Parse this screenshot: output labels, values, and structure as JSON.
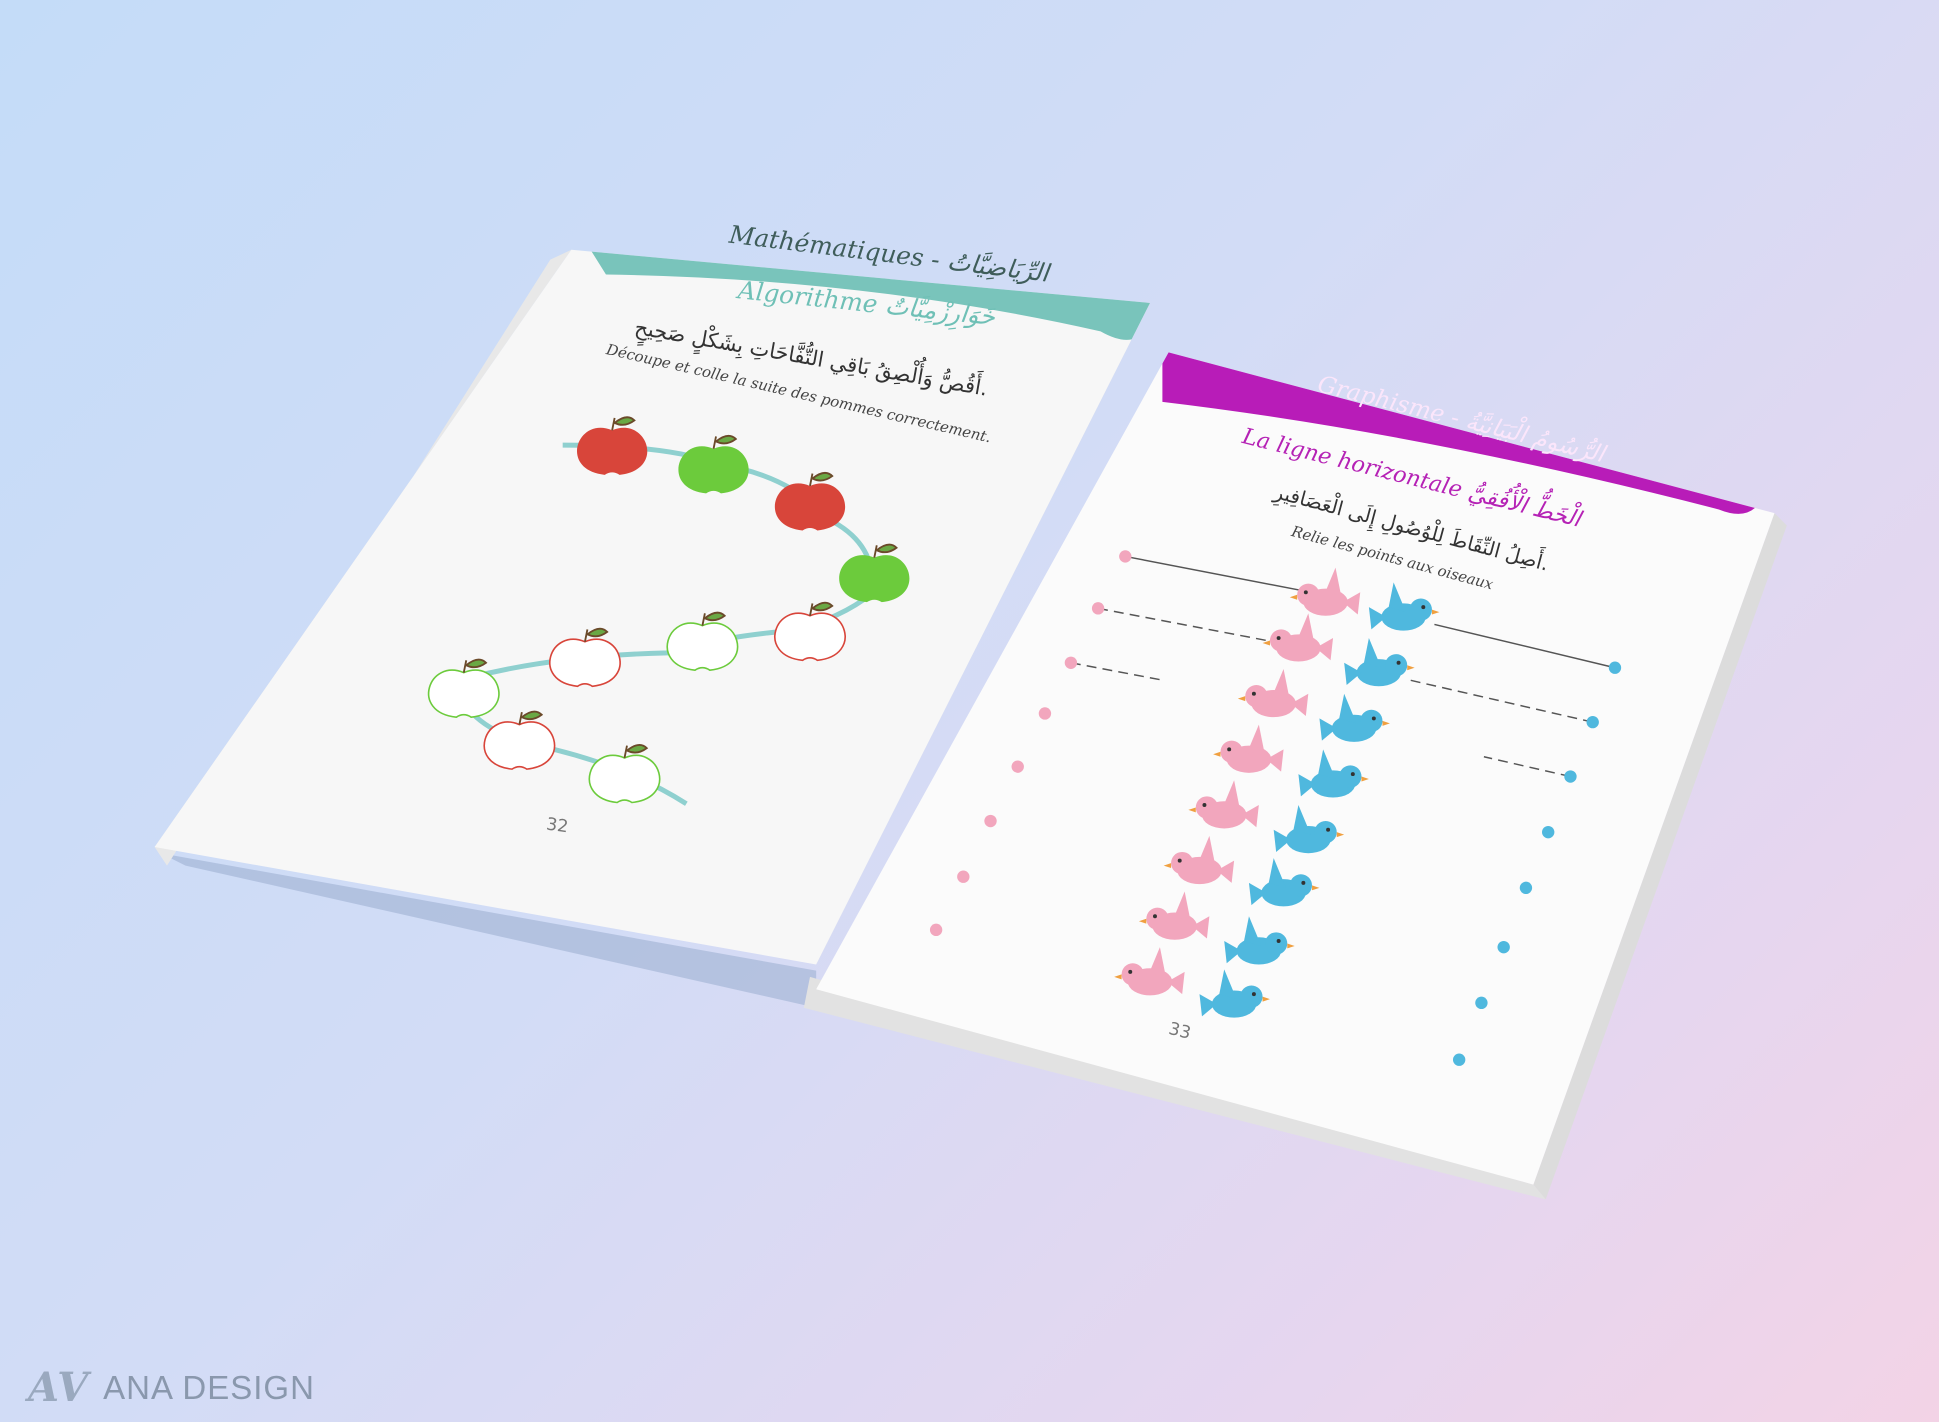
{
  "left_page": {
    "header": "Mathématiques - الرِّيَاضِيَّاتُ",
    "header_color": "#79c4bb",
    "subtitle": "Algorithme  خَوَارِزْمِيَّاتٌ",
    "subtitle_color": "#6fc0b6",
    "instruction_ar": "أَقُصُّ وَأُلْصِقُ بَاقِي التُّفَّاحَاتِ بِشَكْلٍ صَحِيحٍ.",
    "instruction_fr": "Découpe et colle la suite des pommes correctement.",
    "page_number": "32"
  },
  "right_page": {
    "header": "Graphisme - الرُّسُومُ الْبَيَانِيَّةُ",
    "header_color": "#b81cb8",
    "subtitle": "La ligne horizontale  الْخَطُّ الْأُفُقِيُّ",
    "subtitle_color": "#b522b5",
    "instruction_ar": "أَصِلُ النِّقَاطَ لِلْوُصُولِ إِلَى الْعَصَافِيرِ.",
    "instruction_fr": "Relie les points aux oiseaux",
    "page_number": "33"
  },
  "colors": {
    "apple_red": "#d8453a",
    "apple_green": "#6ccb3c",
    "pink_bird": "#f2a6bd",
    "blue_bird": "#4fb8de",
    "path": "#8fd0cf"
  },
  "watermark": {
    "mark": "AV",
    "text": "ANA DESIGN"
  }
}
